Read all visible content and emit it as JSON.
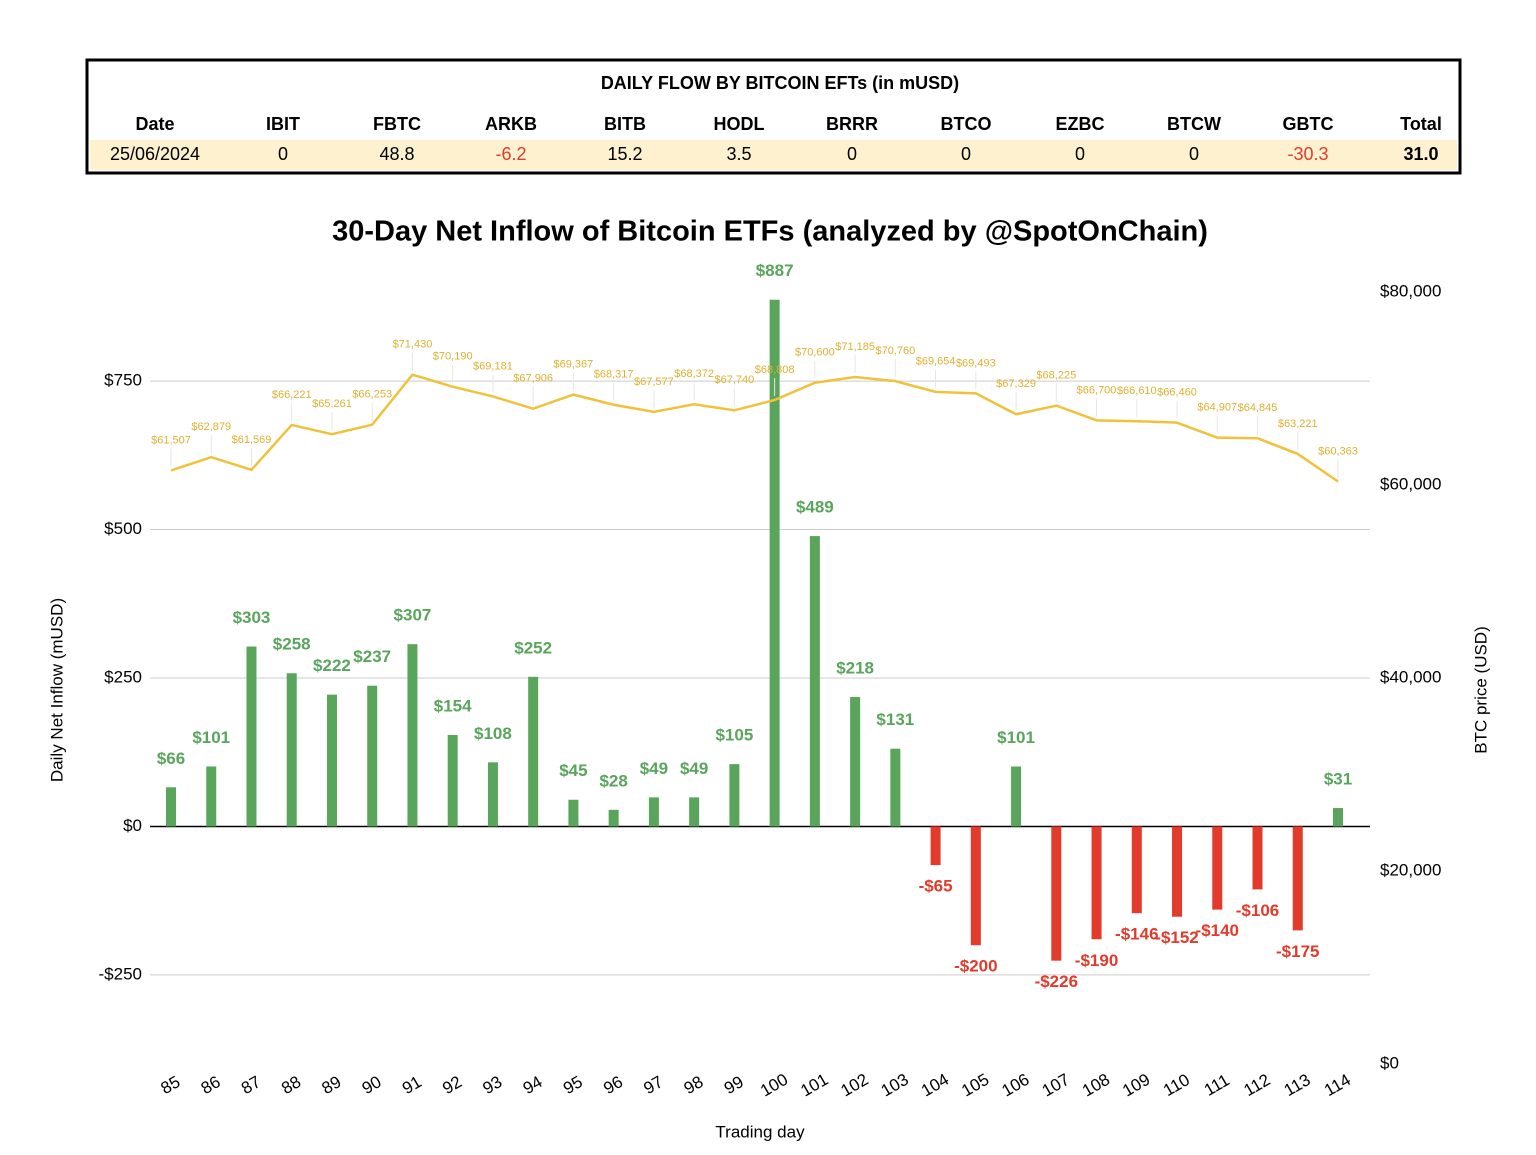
{
  "table": {
    "title": "DAILY FLOW BY BITCOIN EFTs (in mUSD)",
    "columns": [
      "Date",
      "IBIT",
      "FBTC",
      "ARKB",
      "BITB",
      "HODL",
      "BRRR",
      "BTCO",
      "EZBC",
      "BTCW",
      "GBTC",
      "Total"
    ],
    "rows": [
      [
        "25/06/2024",
        "0",
        "48.8",
        "-6.2",
        "15.2",
        "3.5",
        "0",
        "0",
        "0",
        "0",
        "-30.3",
        "31.0"
      ]
    ]
  },
  "chart_data": {
    "type": "bar",
    "title": "30-Day Net Inflow of Bitcoin ETFs (analyzed by @SpotOnChain)",
    "x_label": "Trading day",
    "y_label": "Daily Net Inflow (mUSD)",
    "y2_label": "BTC price (USD)",
    "categories": [
      "85",
      "86",
      "87",
      "88",
      "89",
      "90",
      "91",
      "92",
      "93",
      "94",
      "95",
      "96",
      "97",
      "98",
      "99",
      "100",
      "101",
      "102",
      "103",
      "104",
      "105",
      "106",
      "107",
      "108",
      "109",
      "110",
      "111",
      "112",
      "113",
      "114"
    ],
    "series": [
      {
        "name": "Net inflow",
        "color": "#5aa55c",
        "negative_color": "#e23b2c",
        "values": [
          66,
          101,
          303,
          258,
          222,
          237,
          307,
          154,
          108,
          252,
          45,
          28,
          49,
          49,
          105,
          887,
          489,
          218,
          131,
          -65,
          -200,
          101,
          -226,
          -190,
          -146,
          -152,
          -140,
          -106,
          -175,
          31
        ],
        "value_labels": [
          "$66",
          "$101",
          "$303",
          "$258",
          "$222",
          "$237",
          "$307",
          "$154",
          "$108",
          "$252",
          "$45",
          "$28",
          "$49",
          "$49",
          "$105",
          "$887",
          "$489",
          "$218",
          "$131",
          "-$65",
          "-$200",
          "$101",
          "-$226",
          "-$190",
          "-$146",
          "-$152",
          "-$140",
          "-$106",
          "-$175",
          "$31"
        ]
      },
      {
        "name": "BTC price",
        "type": "line",
        "axis": "y2",
        "color": "#f0c23c",
        "values": [
          61507,
          62879,
          61569,
          66221,
          65261,
          66253,
          71430,
          70190,
          69181,
          67906,
          69367,
          68317,
          67577,
          68372,
          67740,
          68808,
          70600,
          71185,
          70760,
          69654,
          69493,
          67329,
          68225,
          66700,
          66610,
          66460,
          64907,
          64845,
          63221,
          60363
        ],
        "value_labels": [
          "$61,507",
          "$62,879",
          "$61,569",
          "$66,221",
          "$65,261",
          "$66,253",
          "$71,430",
          "$70,190",
          "$69,181",
          "$67,906",
          "$69,367",
          "$68,317",
          "$67,577",
          "$68,372",
          "$67,740",
          "$68,808",
          "$70,600",
          "$71,185",
          "$70,760",
          "$69,654",
          "$69,493",
          "$67,329",
          "$68,225",
          "$66,700",
          "$66,610",
          "$66,460",
          "$64,907",
          "$64,845",
          "$63,221",
          "$60,363"
        ]
      }
    ],
    "ylim": [
      -400,
      900
    ],
    "yticks": [
      {
        "value": -250,
        "label": "-$250"
      },
      {
        "value": 0,
        "label": "$0"
      },
      {
        "value": 250,
        "label": "$250"
      },
      {
        "value": 500,
        "label": "$500"
      },
      {
        "value": 750,
        "label": "$750"
      }
    ],
    "y2lim": [
      0,
      80000
    ],
    "y2ticks": [
      {
        "value": 0,
        "label": "$0"
      },
      {
        "value": 20000,
        "label": "$20,000"
      },
      {
        "value": 40000,
        "label": "$40,000"
      },
      {
        "value": 60000,
        "label": "$60,000"
      },
      {
        "value": 80000,
        "label": "$80,000"
      }
    ],
    "grid": true
  }
}
